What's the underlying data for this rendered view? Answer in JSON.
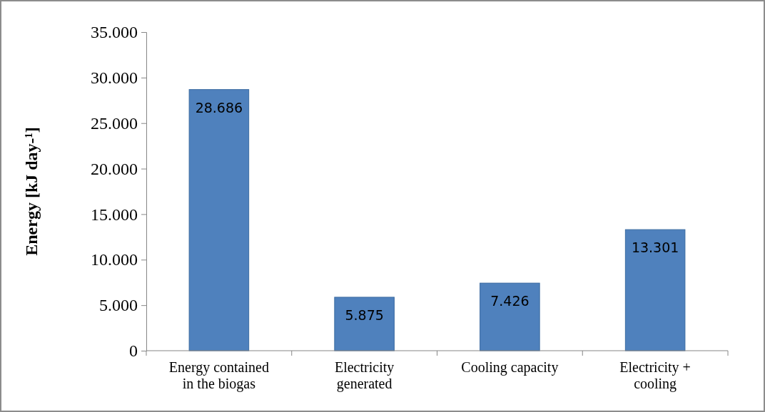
{
  "chart_data": {
    "type": "bar",
    "ylabel": "Energy [kJ day-¹]",
    "categories": [
      "Energy contained in the biogas",
      "Electricity generated",
      "Cooling capacity",
      "Electricity + cooling"
    ],
    "values": [
      28686,
      5875,
      7426,
      13301
    ],
    "value_labels": [
      "28.686",
      "5.875",
      "7.426",
      "13.301"
    ],
    "color": "#4f81bd",
    "ylim": [
      0,
      35000
    ],
    "yticks": [
      0,
      {
        "value": 5000,
        "label": "5.000"
      },
      {
        "value": 10000,
        "label": "10.000"
      },
      {
        "value": 15000,
        "label": "15.000"
      },
      {
        "value": 20000,
        "label": "20.000"
      },
      {
        "value": 25000,
        "label": "25.000"
      },
      {
        "value": 30000,
        "label": "30.000"
      },
      {
        "value": 35000,
        "label": "35.000"
      }
    ],
    "grid": false
  }
}
